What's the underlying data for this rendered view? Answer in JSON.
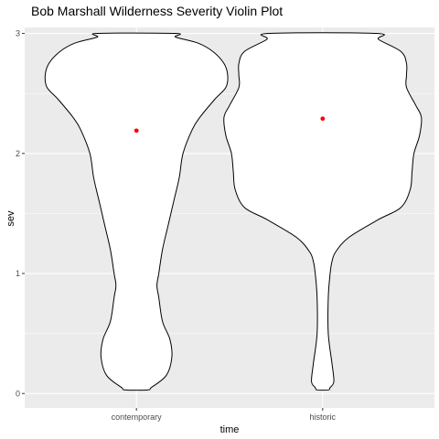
{
  "chart_data": {
    "type": "violin",
    "title": "Bob Marshall Wilderness Severity Violin Plot",
    "xlabel": "time",
    "ylabel": "sev",
    "categories": [
      "contemporary",
      "historic"
    ],
    "ylim": [
      -0.12,
      3.05
    ],
    "y_ticks": [
      0,
      1,
      2,
      3
    ],
    "grid": true,
    "panel_background": "#ebebeb",
    "grid_color": "#ffffff",
    "violin_fill": "#ffffff",
    "violin_outline": "#000000",
    "mean_point_color": "#ff0000",
    "means": [
      2.19,
      2.29
    ],
    "violins": [
      {
        "category": "contemporary",
        "profile_y": [
          0.03,
          0.05,
          0.15,
          0.3,
          0.45,
          0.6,
          0.8,
          0.9,
          1.0,
          1.2,
          1.4,
          1.6,
          1.8,
          2.0,
          2.2,
          2.3,
          2.45,
          2.55,
          2.65,
          2.75,
          2.85,
          2.92,
          2.97,
          3.0
        ],
        "profile_half_width": [
          0.06,
          0.08,
          0.16,
          0.19,
          0.18,
          0.14,
          0.12,
          0.11,
          0.12,
          0.14,
          0.17,
          0.2,
          0.23,
          0.25,
          0.3,
          0.34,
          0.42,
          0.48,
          0.49,
          0.47,
          0.41,
          0.33,
          0.21,
          0.21
        ]
      },
      {
        "category": "historic",
        "profile_y": [
          0.03,
          0.05,
          0.1,
          0.25,
          0.5,
          0.8,
          1.0,
          1.1,
          1.18,
          1.3,
          1.45,
          1.55,
          1.7,
          1.85,
          2.0,
          2.15,
          2.3,
          2.4,
          2.55,
          2.65,
          2.75,
          2.85,
          2.95,
          3.0
        ],
        "profile_half_width": [
          0.03,
          0.04,
          0.06,
          0.05,
          0.03,
          0.03,
          0.04,
          0.05,
          0.07,
          0.14,
          0.3,
          0.42,
          0.47,
          0.48,
          0.49,
          0.52,
          0.53,
          0.5,
          0.45,
          0.45,
          0.45,
          0.42,
          0.3,
          0.29
        ]
      }
    ]
  }
}
